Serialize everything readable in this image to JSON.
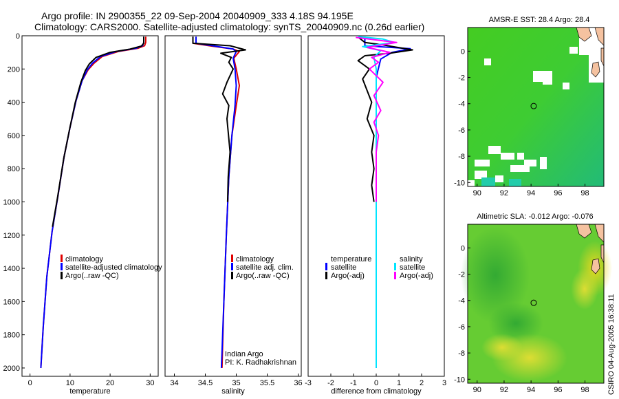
{
  "title": {
    "line1": "Argo profile: IN 2900355_22 09-Sep-2004 20040909_333 4.18S 94.195E",
    "line2": "Climatology: CARS2000. Satellite-adjusted climatology: synTS_20040909.nc (0.26d earlier)"
  },
  "side_text": "CSIRO 04-Aug-2005 16:38:11",
  "colors": {
    "climatology": "#e00000",
    "satellite": "#0000ff",
    "argo": "#000000",
    "salinity_sat": "#00e5ff",
    "salinity_argo": "#ff00ff",
    "sea_green": "#33cc33",
    "land": "#f5c2a0"
  },
  "chart_data": [
    {
      "type": "line",
      "name": "temperature-profile",
      "xlabel": "temperature",
      "ylabel": "",
      "xlim": [
        -2,
        32
      ],
      "ylim": [
        2050,
        0
      ],
      "xticks": [
        0,
        10,
        20,
        30
      ],
      "yticks": [
        0,
        200,
        400,
        600,
        800,
        1000,
        1200,
        1400,
        1600,
        1800,
        2000
      ],
      "legend": [
        "climatology",
        "satellite-adjusted climatology",
        "Argo(..raw -QC)"
      ],
      "series": [
        {
          "name": "climatology",
          "color_key": "climatology",
          "points": [
            [
              28.9,
              5
            ],
            [
              28.9,
              40
            ],
            [
              28.6,
              60
            ],
            [
              27,
              75
            ],
            [
              22,
              95
            ],
            [
              18,
              125
            ],
            [
              16,
              165
            ],
            [
              14.5,
              205
            ],
            [
              13,
              270
            ],
            [
              11.5,
              390
            ],
            [
              10,
              550
            ],
            [
              8.5,
              730
            ],
            [
              7,
              960
            ],
            [
              5.5,
              1180
            ],
            [
              4.2,
              1450
            ],
            [
              3.3,
              1750
            ],
            [
              2.7,
              2000
            ]
          ]
        },
        {
          "name": "satellite-adjusted climatology",
          "color_key": "satellite",
          "points": [
            [
              28.4,
              5
            ],
            [
              28.4,
              40
            ],
            [
              28.1,
              60
            ],
            [
              26.5,
              75
            ],
            [
              21.5,
              95
            ],
            [
              17.6,
              125
            ],
            [
              15.6,
              165
            ],
            [
              14.3,
              205
            ],
            [
              13,
              270
            ],
            [
              11.5,
              390
            ],
            [
              10,
              550
            ],
            [
              8.5,
              730
            ],
            [
              7,
              960
            ],
            [
              5.5,
              1180
            ],
            [
              4.2,
              1450
            ],
            [
              3.3,
              1750
            ],
            [
              2.7,
              2000
            ]
          ]
        },
        {
          "name": "Argo(..raw -QC)",
          "color_key": "argo",
          "points": [
            [
              28.4,
              5
            ],
            [
              28.4,
              45
            ],
            [
              27.8,
              62
            ],
            [
              25,
              80
            ],
            [
              20,
              100
            ],
            [
              16.5,
              130
            ],
            [
              14.8,
              170
            ],
            [
              13.8,
              210
            ],
            [
              12.7,
              280
            ],
            [
              11.3,
              400
            ],
            [
              9.9,
              560
            ],
            [
              8.4,
              740
            ],
            [
              6.9,
              970
            ],
            [
              5.6,
              1150
            ]
          ]
        }
      ]
    },
    {
      "type": "line",
      "name": "salinity-profile",
      "xlabel": "salinity",
      "xlim": [
        33.85,
        36.05
      ],
      "ylim": [
        2050,
        0
      ],
      "xticks": [
        34,
        34.5,
        35,
        35.5,
        36
      ],
      "legend": [
        "climatology",
        "satellite adj. clim.",
        "Argo(..raw -QC)"
      ],
      "annotation": [
        "Indian Argo",
        "PI: K. Radhakrishnan"
      ],
      "series": [
        {
          "name": "climatology",
          "color_key": "climatology",
          "points": [
            [
              34.3,
              5
            ],
            [
              34.3,
              45
            ],
            [
              34.6,
              62
            ],
            [
              34.95,
              80
            ],
            [
              35.05,
              95
            ],
            [
              34.96,
              135
            ],
            [
              35.0,
              200
            ],
            [
              35.05,
              300
            ],
            [
              35.0,
              420
            ],
            [
              34.93,
              600
            ],
            [
              34.88,
              850
            ],
            [
              34.84,
              1200
            ],
            [
              34.8,
              1600
            ],
            [
              34.77,
              2000
            ]
          ]
        },
        {
          "name": "satellite adj. clim.",
          "color_key": "satellite",
          "points": [
            [
              34.35,
              5
            ],
            [
              34.35,
              45
            ],
            [
              34.65,
              62
            ],
            [
              34.95,
              80
            ],
            [
              35.0,
              95
            ],
            [
              34.95,
              135
            ],
            [
              34.98,
              200
            ],
            [
              35.0,
              300
            ],
            [
              34.98,
              420
            ],
            [
              34.93,
              600
            ],
            [
              34.88,
              850
            ],
            [
              34.84,
              1200
            ],
            [
              34.8,
              1600
            ],
            [
              34.76,
              2000
            ]
          ]
        },
        {
          "name": "Argo(..raw -QC)",
          "color_key": "argo",
          "points": [
            [
              34.3,
              5
            ],
            [
              34.3,
              45
            ],
            [
              34.9,
              60
            ],
            [
              35.15,
              85
            ],
            [
              34.75,
              105
            ],
            [
              34.92,
              130
            ],
            [
              34.88,
              160
            ],
            [
              34.95,
              200
            ],
            [
              34.85,
              280
            ],
            [
              34.78,
              350
            ],
            [
              34.88,
              420
            ],
            [
              34.85,
              500
            ],
            [
              34.9,
              700
            ],
            [
              34.87,
              850
            ],
            [
              34.86,
              1000
            ]
          ]
        }
      ]
    },
    {
      "type": "line",
      "name": "difference-profile",
      "xlabel": "difference from climatology",
      "xlim": [
        -3,
        3
      ],
      "ylim": [
        2050,
        0
      ],
      "xticks": [
        -3,
        -2,
        -1,
        0,
        1,
        2,
        3
      ],
      "legend_left": [
        "temperature",
        "satellite",
        "Argo(-adj)"
      ],
      "legend_right": [
        "salinity",
        "satellite",
        "Argo(-adj)"
      ],
      "series": [
        {
          "name": "temperature satellite",
          "color_key": "satellite",
          "points": [
            [
              -0.5,
              5
            ],
            [
              -0.5,
              40
            ],
            [
              -0.5,
              60
            ],
            [
              1.5,
              78
            ],
            [
              0.7,
              100
            ],
            [
              0.2,
              140
            ],
            [
              0.0,
              250
            ],
            [
              0.0,
              2000
            ]
          ]
        },
        {
          "name": "temperature Argo(-adj)",
          "color_key": "argo",
          "points": [
            [
              -0.8,
              8
            ],
            [
              -0.5,
              40
            ],
            [
              0.3,
              55
            ],
            [
              1.6,
              85
            ],
            [
              0.6,
              105
            ],
            [
              -0.5,
              120
            ],
            [
              -0.8,
              150
            ],
            [
              -0.3,
              200
            ],
            [
              -0.6,
              260
            ],
            [
              -0.4,
              330
            ],
            [
              -0.2,
              400
            ],
            [
              -0.4,
              500
            ],
            [
              -0.1,
              600
            ],
            [
              -0.2,
              700
            ],
            [
              -0.1,
              800
            ],
            [
              -0.2,
              900
            ],
            [
              -0.1,
              1000
            ]
          ]
        },
        {
          "name": "salinity satellite",
          "color_key": "salinity_sat",
          "points": [
            [
              -0.8,
              5
            ],
            [
              0.3,
              20
            ],
            [
              0.8,
              40
            ],
            [
              -0.6,
              65
            ],
            [
              0.2,
              90
            ],
            [
              -0.1,
              130
            ],
            [
              0.0,
              200
            ],
            [
              0.0,
              2000
            ]
          ]
        },
        {
          "name": "salinity Argo(-adj)",
          "color_key": "salinity_argo",
          "points": [
            [
              -0.9,
              10
            ],
            [
              0.9,
              40
            ],
            [
              -0.4,
              70
            ],
            [
              0.6,
              100
            ],
            [
              -0.2,
              130
            ],
            [
              0.1,
              160
            ],
            [
              -0.3,
              200
            ],
            [
              0.3,
              280
            ],
            [
              -0.1,
              360
            ],
            [
              0.2,
              450
            ],
            [
              -0.1,
              520
            ],
            [
              0.1,
              600
            ],
            [
              0.0,
              700
            ],
            [
              0.0,
              1000
            ]
          ]
        }
      ]
    },
    {
      "type": "heatmap",
      "name": "sst-map",
      "title": "AMSR-E SST: 28.4 Argo: 28.4",
      "xlim": [
        89.3,
        99.4
      ],
      "ylim": [
        -10.3,
        1.8
      ],
      "xticks": [
        90,
        92,
        94,
        96,
        98
      ],
      "yticks": [
        0,
        -2,
        -4,
        -6,
        -8,
        -10
      ],
      "marker": {
        "lon": 94.195,
        "lat": -4.18
      }
    },
    {
      "type": "heatmap",
      "name": "sla-map",
      "title": "Altimetric SLA: -0.012 Argo: -0.076",
      "xlim": [
        89.3,
        99.4
      ],
      "ylim": [
        -10.3,
        1.8
      ],
      "xticks": [
        90,
        92,
        94,
        96,
        98
      ],
      "yticks": [
        0,
        -2,
        -4,
        -6,
        -8,
        -10
      ],
      "marker": {
        "lon": 94.195,
        "lat": -4.18
      }
    }
  ]
}
